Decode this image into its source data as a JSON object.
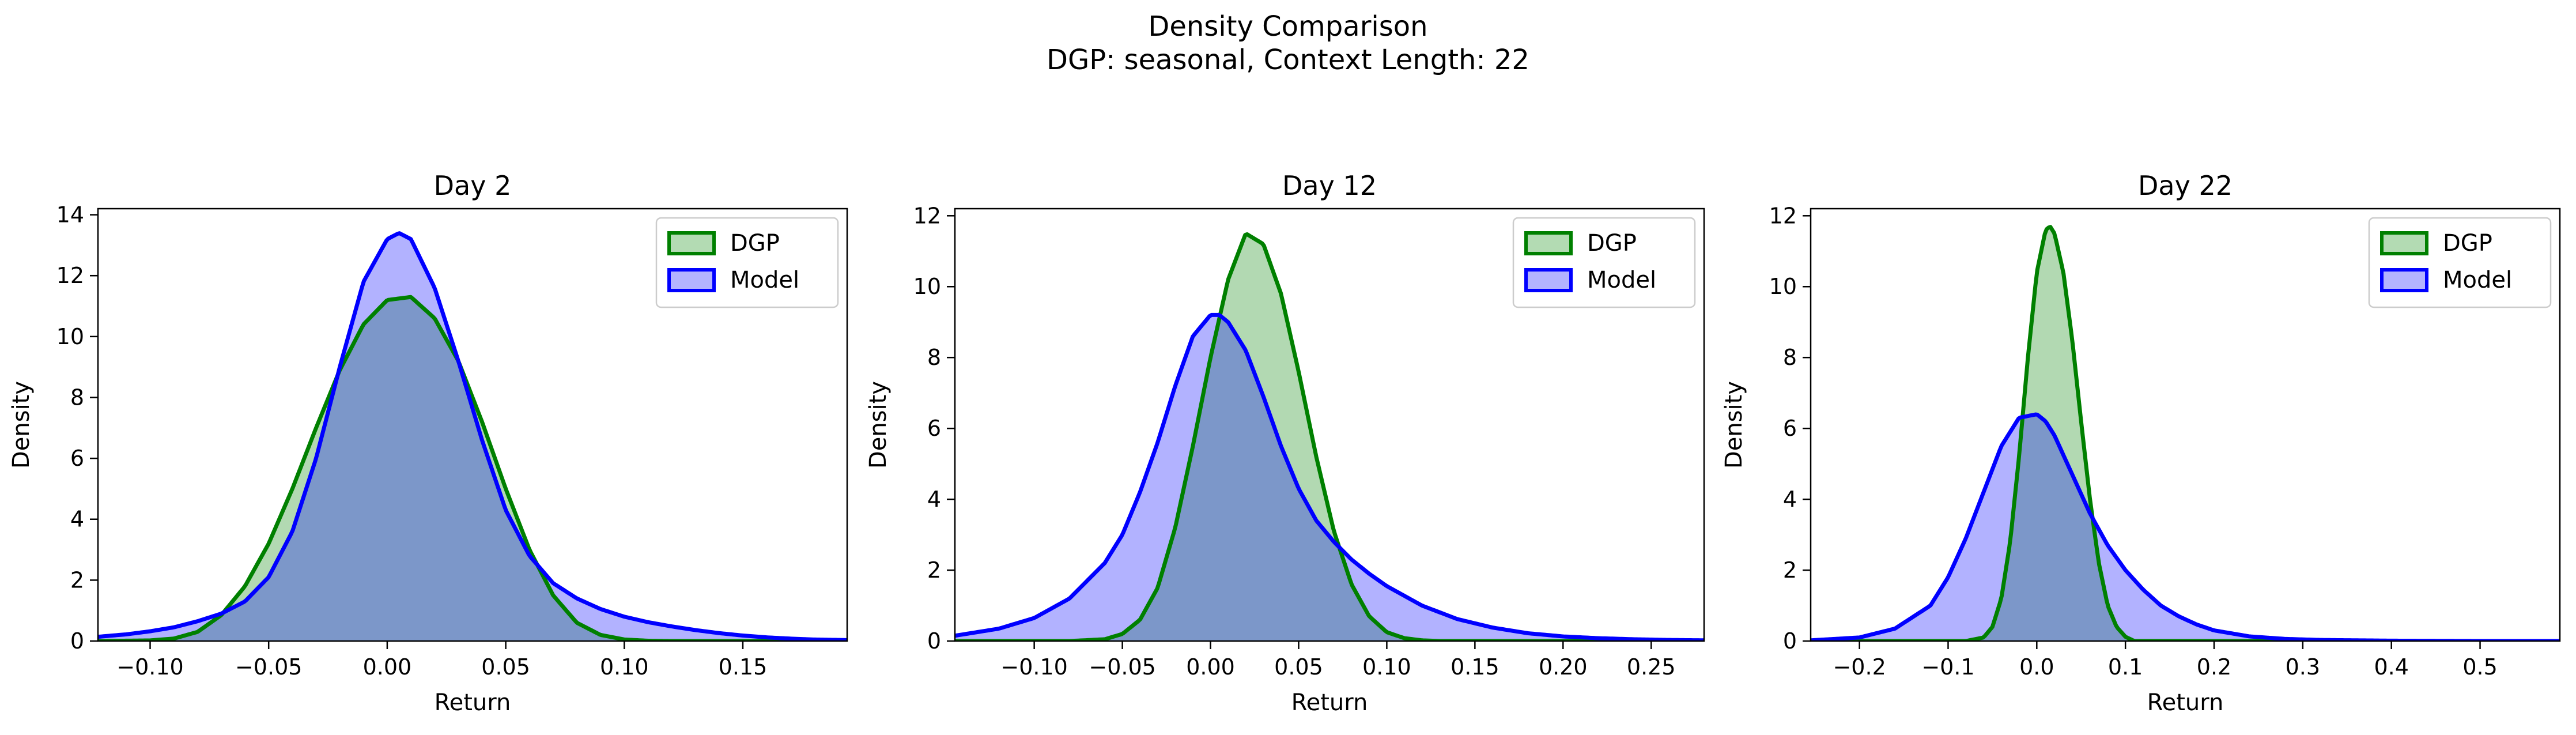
{
  "figure": {
    "suptitle_line1": "Density Comparison",
    "suptitle_line2": "DGP: seasonal, Context Length: 22"
  },
  "colors": {
    "dgp": "#008000",
    "dgp_fill": "#b3dbb3",
    "model": "#0000ff",
    "model_fill": "#b3b3ff",
    "overlap": "#7d99c9"
  },
  "chart_data": [
    {
      "type": "area",
      "title": "Day 2",
      "xlabel": "Return",
      "ylabel": "Density",
      "xlim": [
        -0.122,
        0.194
      ],
      "ylim": [
        0,
        14.2
      ],
      "xticks": [
        -0.1,
        -0.05,
        0.0,
        0.05,
        0.1,
        0.15
      ],
      "xtick_labels": [
        "−0.10",
        "−0.05",
        "0.00",
        "0.05",
        "0.10",
        "0.15"
      ],
      "yticks": [
        0,
        2,
        4,
        6,
        8,
        10,
        12,
        14
      ],
      "ytick_labels": [
        "0",
        "2",
        "4",
        "6",
        "8",
        "10",
        "12",
        "14"
      ],
      "legend": {
        "position": "upper-right",
        "entries": [
          "DGP",
          "Model"
        ]
      },
      "series": [
        {
          "name": "DGP",
          "x": [
            -0.122,
            -0.1,
            -0.09,
            -0.08,
            -0.07,
            -0.06,
            -0.05,
            -0.04,
            -0.03,
            -0.02,
            -0.01,
            0.0,
            0.01,
            0.02,
            0.03,
            0.04,
            0.05,
            0.06,
            0.07,
            0.08,
            0.09,
            0.1,
            0.11,
            0.12,
            0.194
          ],
          "y": [
            0.0,
            0.02,
            0.08,
            0.3,
            0.85,
            1.8,
            3.2,
            5.0,
            7.0,
            8.9,
            10.4,
            11.2,
            11.3,
            10.6,
            9.2,
            7.2,
            5.0,
            3.0,
            1.5,
            0.6,
            0.2,
            0.05,
            0.01,
            0.0,
            0.0
          ]
        },
        {
          "name": "Model",
          "x": [
            -0.122,
            -0.11,
            -0.1,
            -0.09,
            -0.08,
            -0.07,
            -0.06,
            -0.05,
            -0.04,
            -0.03,
            -0.02,
            -0.01,
            0.0,
            0.005,
            0.01,
            0.02,
            0.03,
            0.04,
            0.05,
            0.06,
            0.07,
            0.08,
            0.09,
            0.1,
            0.11,
            0.12,
            0.13,
            0.14,
            0.15,
            0.16,
            0.17,
            0.18,
            0.194
          ],
          "y": [
            0.14,
            0.22,
            0.32,
            0.45,
            0.65,
            0.9,
            1.3,
            2.1,
            3.6,
            6.0,
            9.0,
            11.8,
            13.2,
            13.4,
            13.2,
            11.6,
            9.2,
            6.6,
            4.3,
            2.8,
            1.9,
            1.4,
            1.05,
            0.8,
            0.62,
            0.48,
            0.36,
            0.26,
            0.18,
            0.12,
            0.08,
            0.05,
            0.03
          ]
        }
      ]
    },
    {
      "type": "area",
      "title": "Day 12",
      "xlabel": "Return",
      "ylabel": "Density",
      "xlim": [
        -0.145,
        0.28
      ],
      "ylim": [
        0,
        12.2
      ],
      "xticks": [
        -0.1,
        -0.05,
        0.0,
        0.05,
        0.1,
        0.15,
        0.2,
        0.25
      ],
      "xtick_labels": [
        "−0.10",
        "−0.05",
        "0.00",
        "0.05",
        "0.10",
        "0.15",
        "0.20",
        "0.25"
      ],
      "yticks": [
        0,
        2,
        4,
        6,
        8,
        10,
        12
      ],
      "ytick_labels": [
        "0",
        "2",
        "4",
        "6",
        "8",
        "10",
        "12"
      ],
      "legend": {
        "position": "upper-right",
        "entries": [
          "DGP",
          "Model"
        ]
      },
      "series": [
        {
          "name": "DGP",
          "x": [
            -0.145,
            -0.08,
            -0.06,
            -0.05,
            -0.04,
            -0.03,
            -0.02,
            -0.01,
            0.0,
            0.01,
            0.02,
            0.03,
            0.04,
            0.05,
            0.06,
            0.07,
            0.08,
            0.09,
            0.1,
            0.11,
            0.12,
            0.13,
            0.28
          ],
          "y": [
            0.0,
            0.0,
            0.05,
            0.2,
            0.6,
            1.5,
            3.2,
            5.5,
            8.0,
            10.2,
            11.5,
            11.2,
            9.8,
            7.6,
            5.2,
            3.1,
            1.6,
            0.7,
            0.25,
            0.08,
            0.02,
            0.0,
            0.0
          ]
        },
        {
          "name": "Model",
          "x": [
            -0.145,
            -0.12,
            -0.1,
            -0.08,
            -0.06,
            -0.05,
            -0.04,
            -0.03,
            -0.02,
            -0.01,
            0.0,
            0.005,
            0.01,
            0.02,
            0.03,
            0.04,
            0.05,
            0.06,
            0.07,
            0.08,
            0.09,
            0.1,
            0.12,
            0.14,
            0.16,
            0.18,
            0.2,
            0.22,
            0.24,
            0.26,
            0.28
          ],
          "y": [
            0.15,
            0.35,
            0.65,
            1.2,
            2.2,
            3.0,
            4.2,
            5.6,
            7.2,
            8.6,
            9.2,
            9.2,
            9.0,
            8.2,
            6.9,
            5.5,
            4.3,
            3.4,
            2.8,
            2.3,
            1.9,
            1.55,
            1.0,
            0.62,
            0.38,
            0.22,
            0.13,
            0.08,
            0.05,
            0.03,
            0.02
          ]
        }
      ]
    },
    {
      "type": "area",
      "title": "Day 22",
      "xlabel": "Return",
      "ylabel": "Density",
      "xlim": [
        -0.255,
        0.59
      ],
      "ylim": [
        0,
        12.2
      ],
      "xticks": [
        -0.2,
        -0.1,
        0.0,
        0.1,
        0.2,
        0.3,
        0.4,
        0.5
      ],
      "xtick_labels": [
        "−0.2",
        "−0.1",
        "0.0",
        "0.1",
        "0.2",
        "0.3",
        "0.4",
        "0.5"
      ],
      "yticks": [
        0,
        2,
        4,
        6,
        8,
        10,
        12
      ],
      "ytick_labels": [
        "0",
        "2",
        "4",
        "6",
        "8",
        "10",
        "12"
      ],
      "legend": {
        "position": "upper-right",
        "entries": [
          "DGP",
          "Model"
        ]
      },
      "series": [
        {
          "name": "DGP",
          "x": [
            -0.255,
            -0.08,
            -0.06,
            -0.05,
            -0.04,
            -0.03,
            -0.02,
            -0.01,
            0.0,
            0.01,
            0.015,
            0.02,
            0.03,
            0.04,
            0.05,
            0.06,
            0.07,
            0.08,
            0.09,
            0.1,
            0.11,
            0.59
          ],
          "y": [
            0.0,
            0.0,
            0.1,
            0.4,
            1.2,
            2.8,
            5.2,
            8.0,
            10.4,
            11.6,
            11.7,
            11.5,
            10.4,
            8.5,
            6.2,
            4.0,
            2.2,
            1.0,
            0.4,
            0.12,
            0.0,
            0.0
          ]
        },
        {
          "name": "Model",
          "x": [
            -0.255,
            -0.2,
            -0.16,
            -0.12,
            -0.1,
            -0.08,
            -0.06,
            -0.04,
            -0.02,
            0.0,
            0.01,
            0.02,
            0.04,
            0.06,
            0.08,
            0.1,
            0.12,
            0.14,
            0.16,
            0.18,
            0.2,
            0.24,
            0.28,
            0.32,
            0.4,
            0.5,
            0.59
          ],
          "y": [
            0.02,
            0.1,
            0.35,
            1.0,
            1.8,
            2.9,
            4.2,
            5.5,
            6.3,
            6.4,
            6.2,
            5.8,
            4.7,
            3.6,
            2.7,
            2.0,
            1.45,
            1.0,
            0.7,
            0.47,
            0.3,
            0.13,
            0.06,
            0.03,
            0.01,
            0.0,
            0.0
          ]
        }
      ]
    }
  ]
}
